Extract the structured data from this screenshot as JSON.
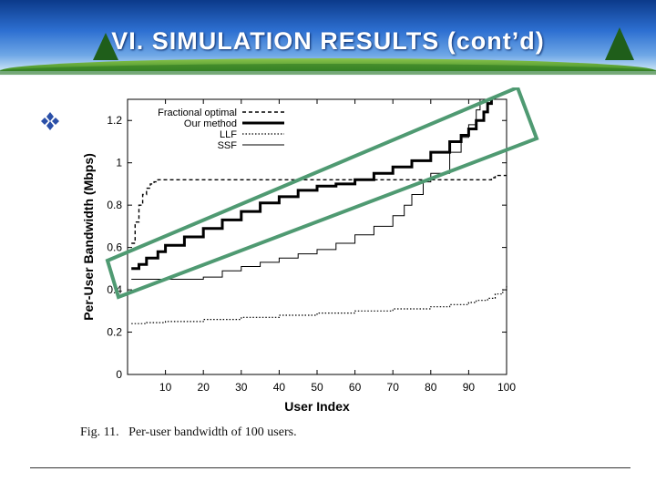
{
  "slide": {
    "title": "VI. SIMULATION RESULTS (cont’d)",
    "caption": "Fig. 11.   Per-user bandwidth of 100 users.",
    "highlight_color": "#4f9a72",
    "bullet_icon": "diamond-bullet-icon"
  },
  "chart_data": {
    "type": "line",
    "xlabel": "User Index",
    "ylabel": "Per-User Bandwidth (Mbps)",
    "xlim": [
      0,
      100
    ],
    "ylim": [
      0,
      1.3
    ],
    "xticks": [
      10,
      20,
      30,
      40,
      50,
      60,
      70,
      80,
      90,
      100
    ],
    "yticks": [
      0,
      0.2,
      0.4,
      0.6,
      0.8,
      1,
      1.2
    ],
    "xtick_labels": [
      "10",
      "20",
      "30",
      "40",
      "50",
      "60",
      "70",
      "80",
      "90",
      "100"
    ],
    "ytick_labels": [
      "0",
      "0.2",
      "0.4",
      "0.6",
      "0.8",
      "1",
      "1.2"
    ],
    "legend_position": "top-left",
    "series": [
      {
        "name": "Fractional optimal",
        "dash": "dashed",
        "x": [
          1,
          2,
          3,
          4,
          5,
          6,
          7,
          8,
          10,
          15,
          20,
          30,
          40,
          50,
          60,
          70,
          80,
          90,
          95,
          96,
          97,
          100
        ],
        "y": [
          0.62,
          0.72,
          0.8,
          0.85,
          0.88,
          0.9,
          0.91,
          0.92,
          0.92,
          0.92,
          0.92,
          0.92,
          0.92,
          0.92,
          0.92,
          0.92,
          0.92,
          0.92,
          0.92,
          0.93,
          0.94,
          0.94
        ]
      },
      {
        "name": "Our method",
        "dash": "solid-bold",
        "x": [
          1,
          3,
          5,
          8,
          10,
          15,
          20,
          25,
          30,
          35,
          40,
          45,
          50,
          55,
          60,
          65,
          70,
          75,
          80,
          85,
          88,
          90,
          92,
          94,
          95,
          96
        ],
        "y": [
          0.5,
          0.52,
          0.55,
          0.58,
          0.61,
          0.65,
          0.69,
          0.73,
          0.77,
          0.81,
          0.84,
          0.87,
          0.89,
          0.9,
          0.92,
          0.95,
          0.98,
          1.01,
          1.05,
          1.1,
          1.13,
          1.16,
          1.2,
          1.24,
          1.28,
          1.3
        ]
      },
      {
        "name": "LLF",
        "dash": "dotted",
        "x": [
          1,
          5,
          10,
          20,
          30,
          40,
          50,
          60,
          70,
          80,
          85,
          90,
          92,
          95,
          97,
          99,
          100
        ],
        "y": [
          0.24,
          0.245,
          0.25,
          0.26,
          0.27,
          0.28,
          0.29,
          0.3,
          0.31,
          0.32,
          0.33,
          0.34,
          0.35,
          0.36,
          0.38,
          0.4,
          0.42
        ]
      },
      {
        "name": "SSF",
        "dash": "solid-thin",
        "x": [
          1,
          5,
          10,
          15,
          20,
          25,
          30,
          35,
          40,
          45,
          50,
          55,
          60,
          65,
          70,
          73,
          75,
          78,
          80,
          85,
          88,
          90,
          92,
          93
        ],
        "y": [
          0.45,
          0.45,
          0.45,
          0.45,
          0.46,
          0.49,
          0.51,
          0.53,
          0.55,
          0.57,
          0.59,
          0.62,
          0.66,
          0.7,
          0.75,
          0.8,
          0.85,
          0.91,
          0.95,
          1.05,
          1.12,
          1.18,
          1.25,
          1.3
        ]
      }
    ]
  }
}
